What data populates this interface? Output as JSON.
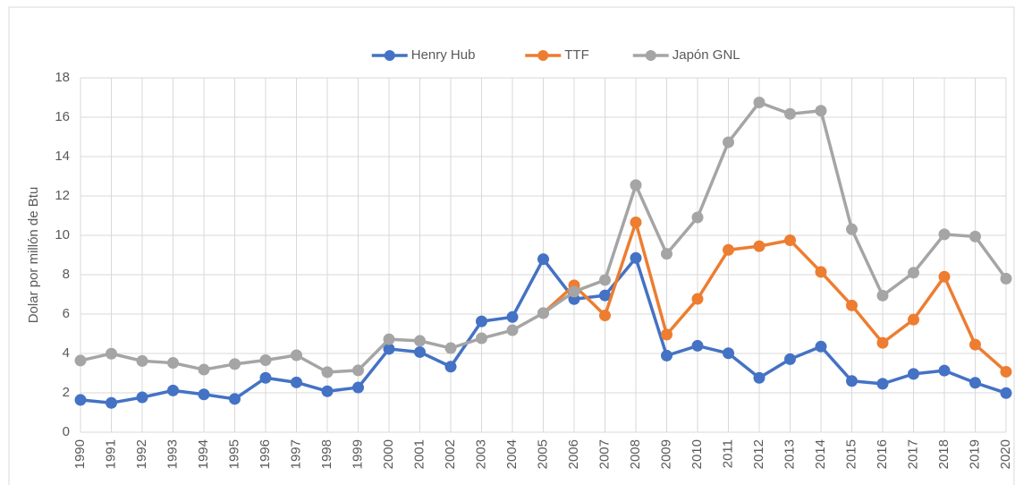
{
  "chart_data": {
    "type": "line",
    "y_label": "Dolar por millón de Btu",
    "categories": [
      "1990",
      "1991",
      "1992",
      "1993",
      "1994",
      "1995",
      "1996",
      "1997",
      "1998",
      "1999",
      "2000",
      "2001",
      "2002",
      "2003",
      "2004",
      "2005",
      "2006",
      "2007",
      "2008",
      "2009",
      "2010",
      "2011",
      "2012",
      "2013",
      "2014",
      "2015",
      "2016",
      "2017",
      "2018",
      "2019",
      "2020"
    ],
    "series": [
      {
        "name": "Henry Hub",
        "color": "#4472c4",
        "values": [
          1.64,
          1.49,
          1.77,
          2.12,
          1.92,
          1.69,
          2.76,
          2.53,
          2.08,
          2.27,
          4.23,
          4.07,
          3.33,
          5.63,
          5.85,
          8.79,
          6.76,
          6.95,
          8.85,
          3.89,
          4.39,
          4.01,
          2.76,
          3.71,
          4.35,
          2.6,
          2.46,
          2.96,
          3.13,
          2.51,
          1.99
        ]
      },
      {
        "name": "TTF",
        "color": "#ed7d31",
        "values": [
          null,
          null,
          null,
          null,
          null,
          null,
          null,
          null,
          null,
          null,
          null,
          null,
          null,
          null,
          null,
          6.05,
          7.46,
          5.93,
          10.66,
          4.96,
          6.77,
          9.26,
          9.45,
          9.75,
          8.14,
          6.44,
          4.54,
          5.72,
          7.9,
          4.45,
          3.07
        ]
      },
      {
        "name": "Japón GNL",
        "color": "#a5a5a5",
        "values": [
          3.64,
          3.99,
          3.62,
          3.52,
          3.18,
          3.46,
          3.66,
          3.91,
          3.05,
          3.14,
          4.72,
          4.64,
          4.27,
          4.77,
          5.18,
          6.05,
          7.14,
          7.73,
          12.55,
          9.06,
          10.91,
          14.73,
          16.75,
          16.17,
          16.33,
          10.31,
          6.94,
          8.1,
          10.05,
          9.94,
          7.8
        ]
      }
    ],
    "ylim": [
      0,
      18
    ],
    "yticks": [
      0,
      2,
      4,
      6,
      8,
      10,
      12,
      14,
      16,
      18
    ],
    "grid": true,
    "legend": "top"
  }
}
